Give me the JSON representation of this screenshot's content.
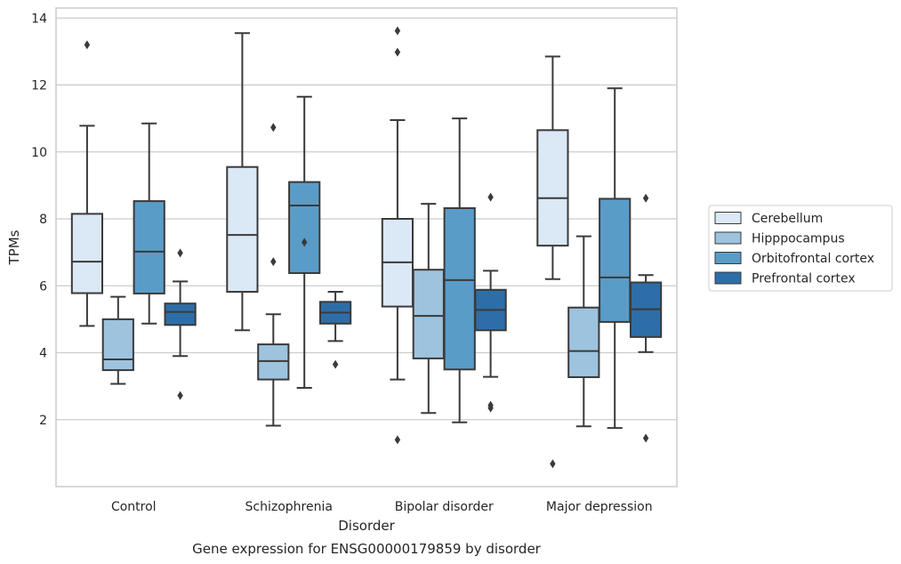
{
  "chart_data": {
    "type": "box",
    "caption": "Gene expression for ENSG00000179859 by disorder",
    "xlabel": "Disorder",
    "ylabel": "TPMs",
    "categories": [
      "Control",
      "Schizophrenia",
      "Bipolar disorder",
      "Major depression"
    ],
    "ylim": [
      0,
      14.3
    ],
    "yticks": [
      2,
      4,
      6,
      8,
      10,
      12,
      14
    ],
    "grid": "horizontal",
    "legend_position": "right",
    "series": [
      {
        "name": "Cerebellum",
        "color": "#dbe8f5",
        "boxes": [
          {
            "whislo": 4.8,
            "q1": 5.78,
            "med": 6.72,
            "q3": 8.15,
            "whishi": 10.78,
            "fliers": [
              13.2
            ]
          },
          {
            "whislo": 4.67,
            "q1": 5.82,
            "med": 7.52,
            "q3": 9.55,
            "whishi": 13.55,
            "fliers": []
          },
          {
            "whislo": 3.2,
            "q1": 5.38,
            "med": 6.7,
            "q3": 8.0,
            "whishi": 10.95,
            "fliers": [
              13.62,
              12.98,
              1.4
            ]
          },
          {
            "whislo": 6.2,
            "q1": 7.2,
            "med": 8.62,
            "q3": 10.65,
            "whishi": 12.85,
            "fliers": [
              0.68
            ]
          }
        ]
      },
      {
        "name": "Hipppocampus",
        "color": "#9dc3de",
        "boxes": [
          {
            "whislo": 3.07,
            "q1": 3.48,
            "med": 3.8,
            "q3": 5.0,
            "whishi": 5.67,
            "fliers": []
          },
          {
            "whislo": 1.82,
            "q1": 3.2,
            "med": 3.75,
            "q3": 4.25,
            "whishi": 5.15,
            "fliers": [
              10.73,
              6.72
            ]
          },
          {
            "whislo": 2.2,
            "q1": 3.83,
            "med": 5.1,
            "q3": 6.48,
            "whishi": 8.45,
            "fliers": []
          },
          {
            "whislo": 1.8,
            "q1": 3.27,
            "med": 4.05,
            "q3": 5.35,
            "whishi": 7.48,
            "fliers": []
          }
        ]
      },
      {
        "name": "Orbitofrontal cortex",
        "color": "#5a9cc8",
        "boxes": [
          {
            "whislo": 4.87,
            "q1": 5.77,
            "med": 7.02,
            "q3": 8.53,
            "whishi": 10.85,
            "fliers": []
          },
          {
            "whislo": 2.95,
            "q1": 6.38,
            "med": 8.4,
            "q3": 9.1,
            "whishi": 11.65,
            "fliers": [
              7.3
            ]
          },
          {
            "whislo": 1.92,
            "q1": 3.5,
            "med": 6.17,
            "q3": 8.32,
            "whishi": 11.0,
            "fliers": []
          },
          {
            "whislo": 1.75,
            "q1": 4.92,
            "med": 6.25,
            "q3": 8.6,
            "whishi": 11.9,
            "fliers": []
          }
        ]
      },
      {
        "name": "Prefrontal cortex",
        "color": "#2d6ea8",
        "boxes": [
          {
            "whislo": 3.9,
            "q1": 4.83,
            "med": 5.22,
            "q3": 5.47,
            "whishi": 6.13,
            "fliers": [
              6.98,
              2.72
            ]
          },
          {
            "whislo": 4.35,
            "q1": 4.87,
            "med": 5.2,
            "q3": 5.52,
            "whishi": 5.82,
            "fliers": [
              3.65
            ]
          },
          {
            "whislo": 3.28,
            "q1": 4.67,
            "med": 5.28,
            "q3": 5.88,
            "whishi": 6.45,
            "fliers": [
              8.65,
              2.43,
              2.35
            ]
          },
          {
            "whislo": 4.02,
            "q1": 4.47,
            "med": 5.3,
            "q3": 6.1,
            "whishi": 6.32,
            "fliers": [
              8.62,
              1.45
            ]
          }
        ]
      }
    ]
  }
}
